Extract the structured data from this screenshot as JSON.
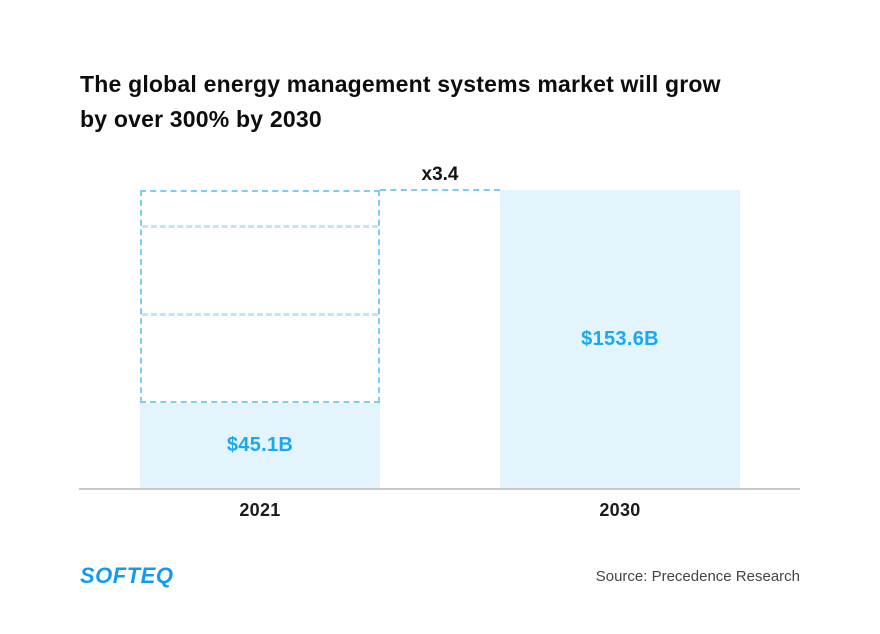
{
  "title": {
    "line1": "The global energy management systems market will grow",
    "line2": "by over 300% by 2030"
  },
  "chart_data": {
    "type": "bar",
    "categories": [
      "2021",
      "2030"
    ],
    "values": [
      45.1,
      153.6
    ],
    "value_labels": [
      "$45.1B",
      "$153.6B"
    ],
    "growth_label": "x3.4",
    "growth_multiplier": 3.4,
    "ylim": [
      0,
      160
    ],
    "grid": false,
    "legend": false,
    "annotation": "Dashed outline above the 2021 bar projects the 2030 height, segmented into multiples of the 2021 value"
  },
  "footer": {
    "logo_text": "SOFTEQ",
    "source_text": "Source: Precedence Research"
  },
  "colors": {
    "bar_fill": "#e3f4fd",
    "value_text": "#1ba7f3",
    "dashed_outline": "#7dccf3",
    "dashed_inner": "#bce5f9",
    "axis": "#c8c8c8",
    "title_text": "#0d0d0d",
    "logo_blue": "#149bf0",
    "source_text_color": "#444444"
  }
}
